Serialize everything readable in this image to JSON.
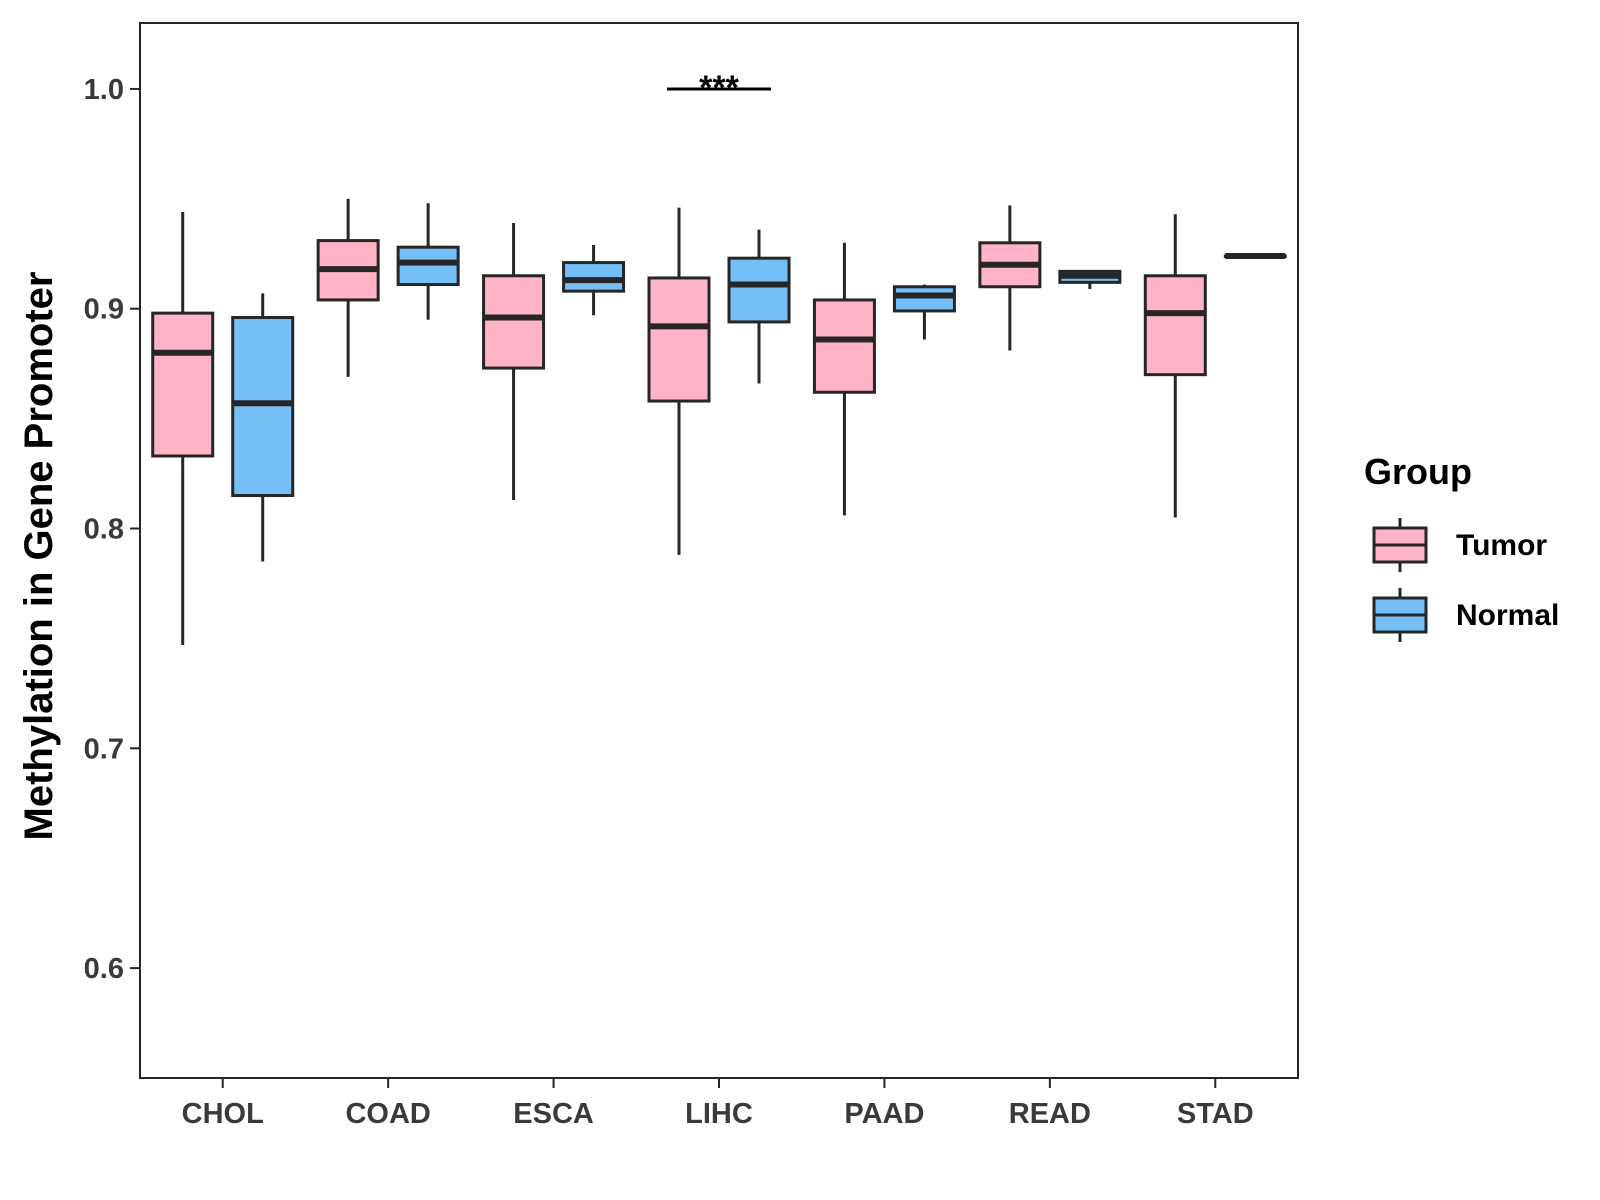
{
  "chart_data": {
    "type": "boxplot",
    "title": "",
    "xlabel": "",
    "ylabel": "Methylation in Gene Promoter",
    "ylim": [
      0.55,
      1.03
    ],
    "yticks": [
      0.6,
      0.7,
      0.8,
      0.9,
      1.0
    ],
    "ytick_labels": [
      "0.6",
      "0.7",
      "0.8",
      "0.9",
      "1.0"
    ],
    "grid": false,
    "legend_position": "right",
    "legend_title": "Group",
    "categories": [
      "CHOL",
      "COAD",
      "ESCA",
      "LIHC",
      "PAAD",
      "READ",
      "STAD"
    ],
    "series": [
      {
        "name": "Tumor",
        "color": "#ffb3c6",
        "stats": [
          {
            "low": 0.747,
            "q1": 0.833,
            "median": 0.88,
            "q3": 0.898,
            "high": 0.944
          },
          {
            "low": 0.869,
            "q1": 0.904,
            "median": 0.918,
            "q3": 0.931,
            "high": 0.95
          },
          {
            "low": 0.813,
            "q1": 0.873,
            "median": 0.896,
            "q3": 0.915,
            "high": 0.939
          },
          {
            "low": 0.788,
            "q1": 0.858,
            "median": 0.892,
            "q3": 0.914,
            "high": 0.946
          },
          {
            "low": 0.806,
            "q1": 0.862,
            "median": 0.886,
            "q3": 0.904,
            "high": 0.93
          },
          {
            "low": 0.881,
            "q1": 0.91,
            "median": 0.92,
            "q3": 0.93,
            "high": 0.947
          },
          {
            "low": 0.805,
            "q1": 0.87,
            "median": 0.898,
            "q3": 0.915,
            "high": 0.943
          }
        ]
      },
      {
        "name": "Normal",
        "color": "#74bff8",
        "stats": [
          {
            "low": 0.785,
            "q1": 0.815,
            "median": 0.857,
            "q3": 0.896,
            "high": 0.907
          },
          {
            "low": 0.895,
            "q1": 0.911,
            "median": 0.921,
            "q3": 0.928,
            "high": 0.948
          },
          {
            "low": 0.897,
            "q1": 0.908,
            "median": 0.913,
            "q3": 0.921,
            "high": 0.929
          },
          {
            "low": 0.866,
            "q1": 0.894,
            "median": 0.911,
            "q3": 0.923,
            "high": 0.936
          },
          {
            "low": 0.886,
            "q1": 0.899,
            "median": 0.906,
            "q3": 0.91,
            "high": 0.911
          },
          {
            "low": 0.909,
            "q1": 0.912,
            "median": 0.915,
            "q3": 0.917,
            "high": 0.917
          },
          {
            "low": 0.924,
            "q1": 0.924,
            "median": 0.924,
            "q3": 0.924,
            "high": 0.924
          }
        ]
      }
    ],
    "annotations": [
      {
        "category": "LIHC",
        "text": "***",
        "y": 1.0
      }
    ]
  }
}
